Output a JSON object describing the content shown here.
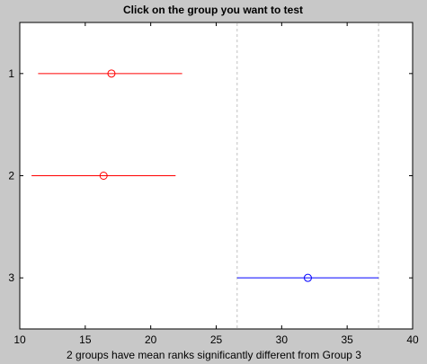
{
  "window": {
    "title": "Click on the group you want to test"
  },
  "colors": {
    "background": "#c8c8c8",
    "axes_bg": "#ffffff",
    "highlight": "#0000ff",
    "significant": "#ff0000",
    "reference_line": "#c0c0c0"
  },
  "chart_data": {
    "type": "scatter",
    "title": "Click on the group you want to test",
    "xlabel": "2 groups have mean ranks significantly different from Group 3",
    "ylabel": "",
    "xlim": [
      10,
      40
    ],
    "ylim": [
      0.5,
      3.5
    ],
    "x_ticks": [
      10,
      15,
      20,
      25,
      30,
      35,
      40
    ],
    "y_ticks": [
      1,
      2,
      3
    ],
    "y_tick_labels": [
      "1",
      "2",
      "3"
    ],
    "y_reversed": true,
    "grid": false,
    "reference_lines_x": [
      26.6,
      37.4
    ],
    "groups": [
      {
        "label": "1",
        "mean": 17.0,
        "lower": 11.4,
        "upper": 22.4,
        "color": "#ff0000"
      },
      {
        "label": "2",
        "mean": 16.4,
        "lower": 10.9,
        "upper": 21.9,
        "color": "#ff0000"
      },
      {
        "label": "3",
        "mean": 32.0,
        "lower": 26.6,
        "upper": 37.4,
        "color": "#0000ff"
      }
    ]
  }
}
